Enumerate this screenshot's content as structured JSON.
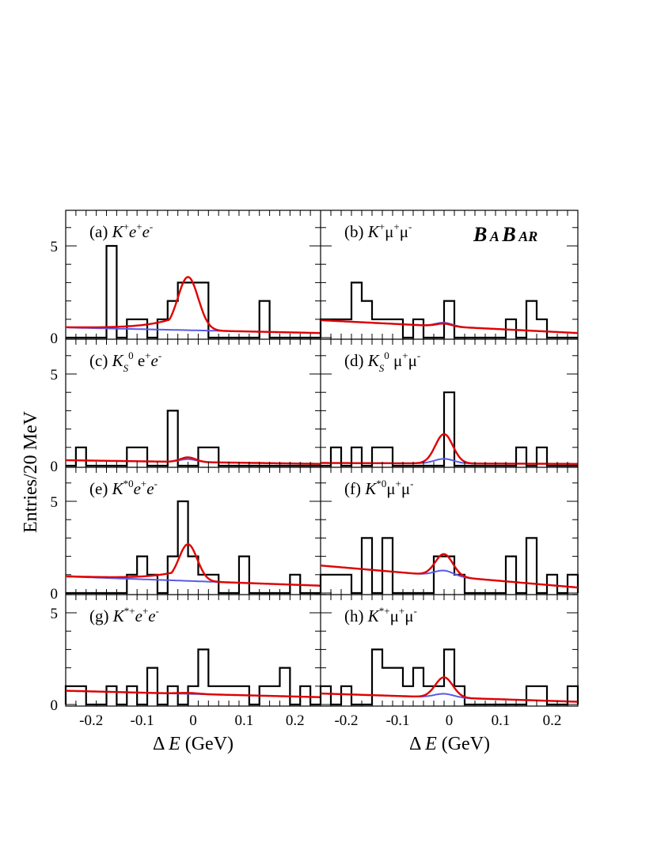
{
  "chart_data": {
    "type": "histogram",
    "ylabel": "Entries/20 MeV",
    "xlabel": "Δ E (GeV)",
    "xlim": [
      -0.25,
      0.25
    ],
    "ylim": [
      0,
      7
    ],
    "x_ticks": [
      "-0.2",
      "-0.1",
      "0",
      "0.1",
      "0.2"
    ],
    "y_ticks": [
      "0",
      "5"
    ],
    "logo": {
      "big1": "B",
      "small1": "A",
      "big2": "B",
      "small2": "AR"
    },
    "bin_edges": [
      -0.25,
      -0.23,
      -0.21,
      -0.19,
      -0.17,
      -0.15,
      -0.13,
      -0.11,
      -0.09,
      -0.07,
      -0.05,
      -0.03,
      -0.01,
      0.01,
      0.03,
      0.05,
      0.07,
      0.09,
      0.11,
      0.13,
      0.15,
      0.17,
      0.19,
      0.21,
      0.23,
      0.25
    ],
    "colors": {
      "histogram": "#000000",
      "total_fit": "#e00000",
      "background_fit": "#5a5ae6"
    },
    "panels": [
      {
        "id": "a",
        "label": {
          "prefix": "(a) ",
          "K": "K",
          "ksup": "+",
          "ksub": "",
          "l": "e",
          "l1sup": "+",
          "l2": "e",
          "l2sup": "-"
        },
        "counts": [
          0,
          0,
          0,
          0,
          5,
          0,
          1,
          1,
          0,
          1,
          2,
          3,
          3,
          3,
          0,
          0,
          0,
          0,
          0,
          2,
          0,
          0,
          0,
          0,
          0
        ],
        "signal_peak": 2.9,
        "signal_sigma": 0.02,
        "signal_tail": 1,
        "bkg_start": 0.55,
        "bkg_end": 0.25
      },
      {
        "id": "b",
        "label": {
          "prefix": "(b) ",
          "K": "K",
          "ksup": "+",
          "ksub": "",
          "l": "μ",
          "l1sup": "+",
          "l2": "μ",
          "l2sup": "-"
        },
        "counts": [
          1,
          1,
          1,
          3,
          2,
          1,
          1,
          1,
          0,
          1,
          0,
          0,
          2,
          0,
          0,
          0,
          0,
          0,
          1,
          0,
          2,
          1,
          0,
          0,
          0
        ],
        "signal_peak": 0.15,
        "signal_sigma": 0.015,
        "signal_tail": 0,
        "bkg_start": 0.95,
        "bkg_end": 0.25,
        "bkg_overlay_peak": 0.2
      },
      {
        "id": "c",
        "label": {
          "prefix": "(c) ",
          "K": "K",
          "ksup": "0",
          "ksub": "S",
          "l": " e",
          "l1sup": "+",
          "l2": "e",
          "l2sup": "-"
        },
        "counts": [
          0,
          1,
          0,
          0,
          0,
          0,
          1,
          1,
          0,
          0,
          3,
          0,
          0,
          1,
          1,
          0,
          0,
          0,
          0,
          0,
          0,
          0,
          0,
          0,
          0
        ],
        "signal_peak": 0.25,
        "signal_sigma": 0.015,
        "signal_tail": 0,
        "bkg_start": 0.3,
        "bkg_end": 0.1,
        "bkg_overlay_peak": 0.15
      },
      {
        "id": "d",
        "label": {
          "prefix": "(d) ",
          "K": "K",
          "ksup": "0",
          "ksub": "S",
          "l": " μ",
          "l1sup": "+",
          "l2": "μ",
          "l2sup": "-"
        },
        "counts": [
          0,
          1,
          0,
          1,
          0,
          1,
          1,
          0,
          0,
          0,
          0,
          0,
          4,
          0,
          0,
          0,
          0,
          0,
          0,
          1,
          0,
          1,
          0,
          0,
          0
        ],
        "signal_peak": 1.6,
        "signal_sigma": 0.017,
        "signal_tail": 0,
        "bkg_start": 0.15,
        "bkg_end": 0.1,
        "bkg_overlay_peak": 0.25
      },
      {
        "id": "e",
        "label": {
          "prefix": "(e) ",
          "K": "K",
          "ksup": "*0",
          "ksub": "",
          "l": "e",
          "l1sup": "+",
          "l2": "e",
          "l2sup": "-"
        },
        "counts": [
          0,
          0,
          0,
          0,
          0,
          0,
          1,
          2,
          1,
          0,
          2,
          5,
          2,
          1,
          1,
          0,
          0,
          2,
          0,
          0,
          0,
          0,
          1,
          0,
          0
        ],
        "signal_peak": 2.0,
        "signal_sigma": 0.018,
        "signal_tail": 1,
        "bkg_start": 0.9,
        "bkg_end": 0.4
      },
      {
        "id": "f",
        "label": {
          "prefix": "(f) ",
          "K": "K",
          "ksup": "*0",
          "ksub": "",
          "l": "μ",
          "l1sup": "+",
          "l2": "μ",
          "l2sup": "-"
        },
        "counts": [
          1,
          1,
          1,
          0,
          3,
          0,
          3,
          0,
          0,
          0,
          0,
          2,
          2,
          1,
          0,
          0,
          0,
          0,
          2,
          0,
          3,
          0,
          1,
          0,
          1
        ],
        "signal_peak": 1.2,
        "signal_sigma": 0.017,
        "signal_tail": 0,
        "bkg_start": 1.5,
        "bkg_end": 0.3,
        "bkg_overlay_peak": 0.3
      },
      {
        "id": "g",
        "label": {
          "prefix": "(g) ",
          "K": "K",
          "ksup": "*+",
          "ksub": "",
          "l": "e",
          "l1sup": "+",
          "l2": "e",
          "l2sup": "-"
        },
        "counts": [
          1,
          1,
          0,
          0,
          1,
          0,
          1,
          0,
          2,
          0,
          1,
          0,
          1,
          3,
          1,
          1,
          1,
          1,
          0,
          1,
          1,
          2,
          0,
          1,
          0
        ],
        "signal_peak": 0.05,
        "signal_sigma": 0.02,
        "signal_tail": 0,
        "bkg_start": 0.75,
        "bkg_end": 0.4
      },
      {
        "id": "h",
        "label": {
          "prefix": "(h) ",
          "K": "K",
          "ksup": "*+",
          "ksub": "",
          "l": "μ",
          "l1sup": "+",
          "l2": "μ",
          "l2sup": "-"
        },
        "counts": [
          1,
          0,
          1,
          0,
          0,
          3,
          2,
          2,
          1,
          2,
          1,
          1,
          3,
          1,
          0,
          0,
          0,
          0,
          0,
          0,
          1,
          1,
          0,
          0,
          1
        ],
        "signal_peak": 1.1,
        "signal_sigma": 0.017,
        "signal_tail": 0,
        "bkg_start": 0.6,
        "bkg_end": 0.15,
        "bkg_overlay_peak": 0.2
      }
    ]
  }
}
